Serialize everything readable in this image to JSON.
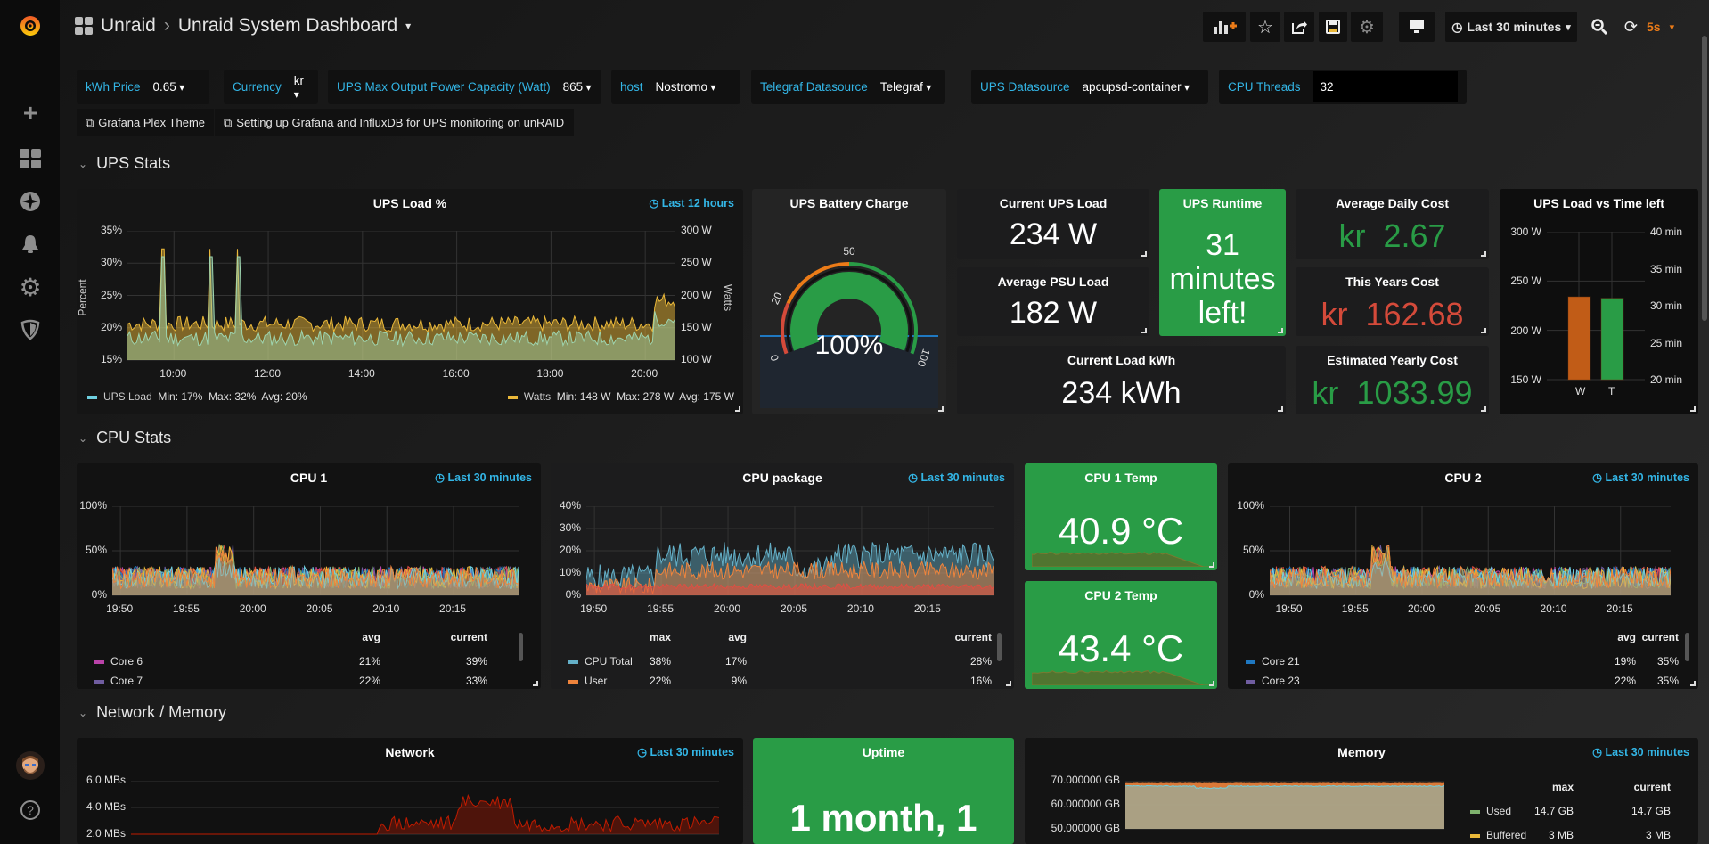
{
  "header": {
    "org": "Unraid",
    "separator": "›",
    "dashboard": "Unraid System Dashboard",
    "time_range": "Last 30 minutes",
    "refresh": "5s"
  },
  "sidebar": {
    "items": [
      "create-icon",
      "dashboards-icon",
      "explore-icon",
      "alerting-icon",
      "configuration-icon",
      "server-admin-icon"
    ],
    "bottom": [
      "user-avatar",
      "help-icon"
    ]
  },
  "variables": [
    {
      "label": "kWh Price",
      "value": "0.65"
    },
    {
      "label": "Currency",
      "value": "kr"
    },
    {
      "label": "UPS Max Output Power Capacity (Watt)",
      "value": "865"
    },
    {
      "label": "host",
      "value": "Nostromo"
    },
    {
      "label": "Telegraf Datasource",
      "value": "Telegraf"
    },
    {
      "label": "UPS Datasource",
      "value": "apcupsd-container"
    },
    {
      "label": "CPU Threads",
      "value": "32"
    }
  ],
  "links": [
    "Grafana Plex Theme",
    "Setting up Grafana and InfluxDB for UPS monitoring on unRAID"
  ],
  "rows": {
    "ups": "UPS Stats",
    "cpu": "CPU Stats",
    "net": "Network / Memory"
  },
  "colors": {
    "green": "#299c46",
    "red": "#d44a3a",
    "orange": "#eb7b18",
    "blue": "#33b5e5",
    "ups_load": "#7eb26d",
    "watts": "#eab839"
  },
  "ups_load": {
    "title": "UPS Load %",
    "time": "Last 12 hours",
    "y_left_label": "Percent",
    "y_right_label": "Watts",
    "y_left_ticks": [
      "35%",
      "30%",
      "25%",
      "20%",
      "15%"
    ],
    "y_right_ticks": [
      "300 W",
      "250 W",
      "200 W",
      "150 W",
      "100 W"
    ],
    "x_ticks": [
      "10:00",
      "12:00",
      "14:00",
      "16:00",
      "18:00",
      "20:00"
    ],
    "legend": [
      {
        "name": "UPS Load",
        "color": "#6ed0e0",
        "stats": "Min: 17%  Max: 32%  Avg: 20%"
      },
      {
        "name": "Watts",
        "color": "#eab839",
        "stats": "Min: 148 W  Max: 278 W  Avg: 175 W"
      }
    ]
  },
  "battery": {
    "title": "UPS Battery Charge",
    "value": "100%",
    "percent": 100,
    "thresholds": [
      "0",
      "20",
      "50",
      "100"
    ]
  },
  "stats": {
    "current_ups_load": {
      "title": "Current UPS Load",
      "value": "234 W"
    },
    "avg_psu_load": {
      "title": "Average PSU Load",
      "value": "182 W"
    },
    "current_load_kwh": {
      "title": "Current Load kWh",
      "value": "234 kWh"
    },
    "ups_runtime": {
      "title": "UPS Runtime",
      "value_lines": [
        "31",
        "minutes",
        "left!"
      ]
    },
    "avg_daily_cost": {
      "title": "Average Daily Cost",
      "prefix": "kr",
      "value": "2.67"
    },
    "this_years_cost": {
      "title": "This Years Cost",
      "prefix": "kr",
      "value": "162.68"
    },
    "est_yearly_cost": {
      "title": "Estimated Yearly Cost",
      "prefix": "kr",
      "value": "1033.99"
    }
  },
  "load_vs_time": {
    "title": "UPS Load vs Time left",
    "y_left_ticks": [
      "300 W",
      "250 W",
      "200 W",
      "150 W"
    ],
    "y_right_ticks": [
      "40 min",
      "35 min",
      "30 min",
      "25 min",
      "20 min"
    ],
    "bars": [
      {
        "label": "W",
        "value": 234,
        "unit": "W",
        "color": "#c15c17"
      },
      {
        "label": "T",
        "value": 31,
        "unit": "min",
        "color": "#299c46"
      }
    ]
  },
  "cpu1": {
    "title": "CPU 1",
    "time": "Last 30 minutes",
    "y_ticks": [
      "100%",
      "50%",
      "0%"
    ],
    "x_ticks": [
      "19:50",
      "19:55",
      "20:00",
      "20:05",
      "20:10",
      "20:15"
    ],
    "columns": [
      "avg",
      "current"
    ],
    "rows": [
      {
        "name": "Core 6",
        "color": "#ba43a9",
        "values": [
          "21%",
          "39%"
        ]
      },
      {
        "name": "Core 7",
        "color": "#705da0",
        "values": [
          "22%",
          "33%"
        ]
      }
    ]
  },
  "cpu_package": {
    "title": "CPU package",
    "time": "Last 30 minutes",
    "y_ticks": [
      "40%",
      "30%",
      "20%",
      "10%",
      "0%"
    ],
    "x_ticks": [
      "19:50",
      "19:55",
      "20:00",
      "20:05",
      "20:10",
      "20:15"
    ],
    "columns": [
      "max",
      "avg",
      "current"
    ],
    "rows": [
      {
        "name": "CPU Total",
        "color": "#64b0c8",
        "values": [
          "38%",
          "17%",
          "28%"
        ]
      },
      {
        "name": "User",
        "color": "#ef843c",
        "values": [
          "22%",
          "9%",
          "16%"
        ]
      }
    ]
  },
  "cpu1_temp": {
    "title": "CPU 1 Temp",
    "value": "40.9 °C"
  },
  "cpu2_temp": {
    "title": "CPU 2 Temp",
    "value": "43.4 °C"
  },
  "cpu2": {
    "title": "CPU 2",
    "time": "Last 30 minutes",
    "y_ticks": [
      "100%",
      "50%",
      "0%"
    ],
    "x_ticks": [
      "19:50",
      "19:55",
      "20:00",
      "20:05",
      "20:10",
      "20:15"
    ],
    "columns": [
      "avg",
      "current"
    ],
    "rows": [
      {
        "name": "Core 21",
        "color": "#1f78c1",
        "values": [
          "19%",
          "35%"
        ]
      },
      {
        "name": "Core 23",
        "color": "#705da0",
        "values": [
          "22%",
          "35%"
        ]
      }
    ]
  },
  "network": {
    "title": "Network",
    "time": "Last 30 minutes",
    "y_ticks": [
      "6.0 MBs",
      "4.0 MBs",
      "2.0 MBs"
    ]
  },
  "uptime": {
    "title": "Uptime",
    "value": "1 month, 1"
  },
  "memory": {
    "title": "Memory",
    "time": "Last 30 minutes",
    "y_ticks": [
      "70.000000 GB",
      "60.000000 GB",
      "50.000000 GB"
    ],
    "columns": [
      "max",
      "current"
    ],
    "rows": [
      {
        "name": "Used",
        "color": "#7eb26d",
        "values": [
          "14.7 GB",
          "14.7 GB"
        ]
      },
      {
        "name": "Buffered",
        "color": "#eab839",
        "values": [
          "3 MB",
          "3 MB"
        ]
      }
    ]
  }
}
